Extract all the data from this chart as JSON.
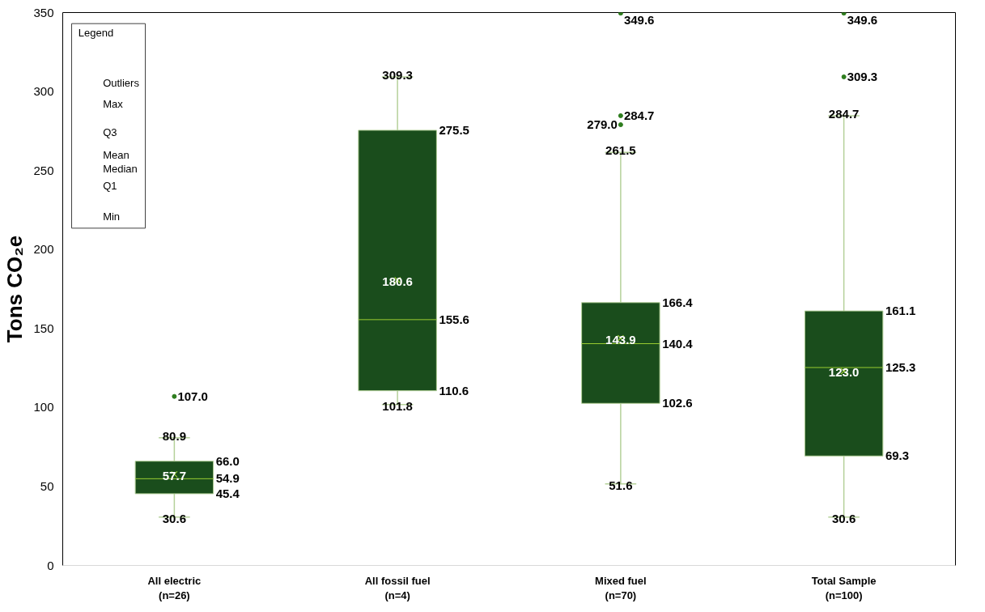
{
  "chart_data": {
    "type": "box",
    "categories": [
      "All electric\n(n=26)",
      "All fossil fuel\n(n=4)",
      "Mixed fuel\n(n=70)",
      "Total Sample\n(n=100)"
    ],
    "ylabel": "Tons CO₂e",
    "ylim": [
      0,
      350
    ],
    "yticks": [
      0,
      50,
      100,
      150,
      200,
      250,
      300,
      350
    ],
    "boxes": [
      {
        "low": 30.6,
        "q1": 45.4,
        "median": 54.9,
        "q3": 66.0,
        "high": 80.9,
        "mean": 57.7,
        "outliers": [
          107.0
        ]
      },
      {
        "low": 101.8,
        "q1": 110.6,
        "median": 155.6,
        "q3": 275.5,
        "high": 309.3,
        "mean": 180.6
      },
      {
        "low": 51.6,
        "q1": 102.6,
        "median": 140.4,
        "q3": 166.4,
        "high": 261.5,
        "mean": 143.9,
        "outliers": [
          279.0,
          284.7,
          349.6
        ]
      },
      {
        "low": 30.6,
        "q1": 69.3,
        "median": 125.3,
        "q3": 161.1,
        "high": 284.7,
        "mean": 123.0,
        "outliers": [
          309.3,
          349.6
        ]
      }
    ],
    "color": "#1a4d1c",
    "grid": false,
    "legend_title": "Legend",
    "annotations": [
      "Outliers",
      "Max",
      "Q3",
      "Mean",
      "Median",
      "Q1",
      "Min",
      "30.6",
      "45.4",
      "54.9",
      "66.0",
      "80.9",
      "57.7",
      "107.0",
      "101.8",
      "110.6",
      "155.6",
      "275.5",
      "309.3",
      "180.6",
      "51.6",
      "102.6",
      "140.4",
      "166.4",
      "261.5",
      "143.9",
      "279.0",
      "284.7",
      "349.6",
      "30.6",
      "69.3",
      "125.3",
      "161.1",
      "284.7",
      "123.0",
      "309.3",
      "349.6"
    ]
  }
}
